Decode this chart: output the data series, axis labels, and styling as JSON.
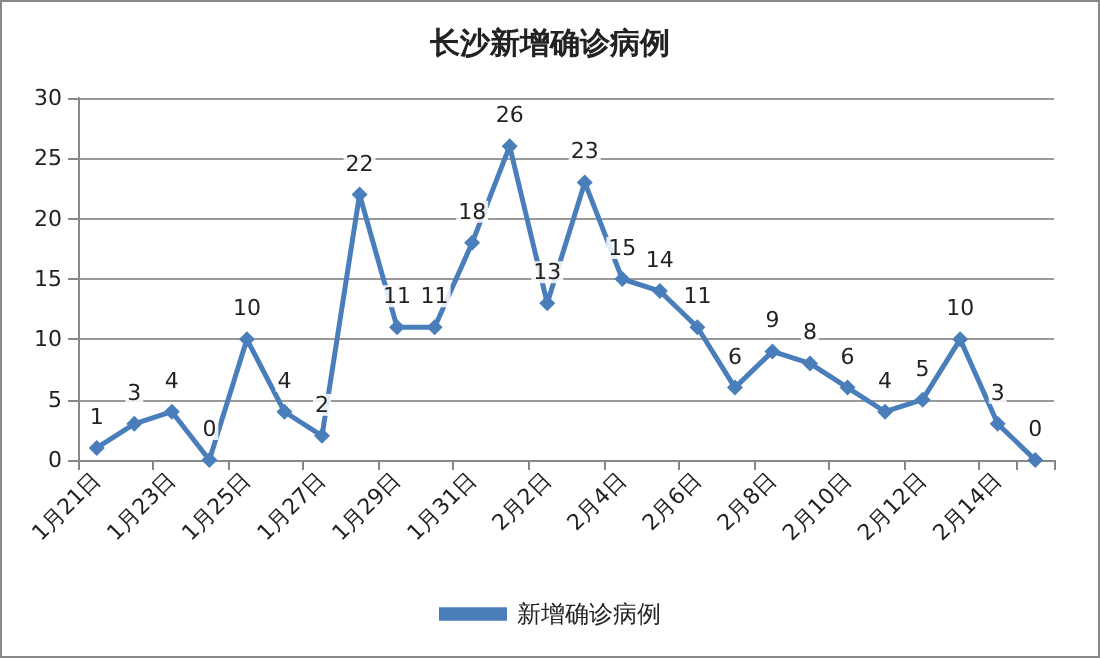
{
  "chart_data": {
    "type": "line",
    "title": "长沙新增确诊病例",
    "categories": [
      "1月21日",
      null,
      "1月23日",
      null,
      "1月25日",
      null,
      "1月27日",
      null,
      "1月29日",
      null,
      "1月31日",
      null,
      "2月2日",
      null,
      "2月4日",
      null,
      "2月6日",
      null,
      "2月8日",
      null,
      "2月10日",
      null,
      "2月12日",
      null,
      "2月14日",
      null
    ],
    "series": [
      {
        "name": "新增确诊病例",
        "color": "#4a7ebb",
        "values": [
          1,
          3,
          4,
          0,
          10,
          4,
          2,
          22,
          11,
          11,
          18,
          26,
          13,
          23,
          15,
          14,
          11,
          6,
          9,
          8,
          6,
          4,
          5,
          10,
          3,
          0
        ]
      }
    ],
    "ylim": [
      0,
      30
    ],
    "yticks": [
      0,
      5,
      10,
      15,
      20,
      25,
      30
    ],
    "grid": "y",
    "legend": "bottom",
    "marker": "diamond",
    "line_style": "solid",
    "data_labels": true
  }
}
